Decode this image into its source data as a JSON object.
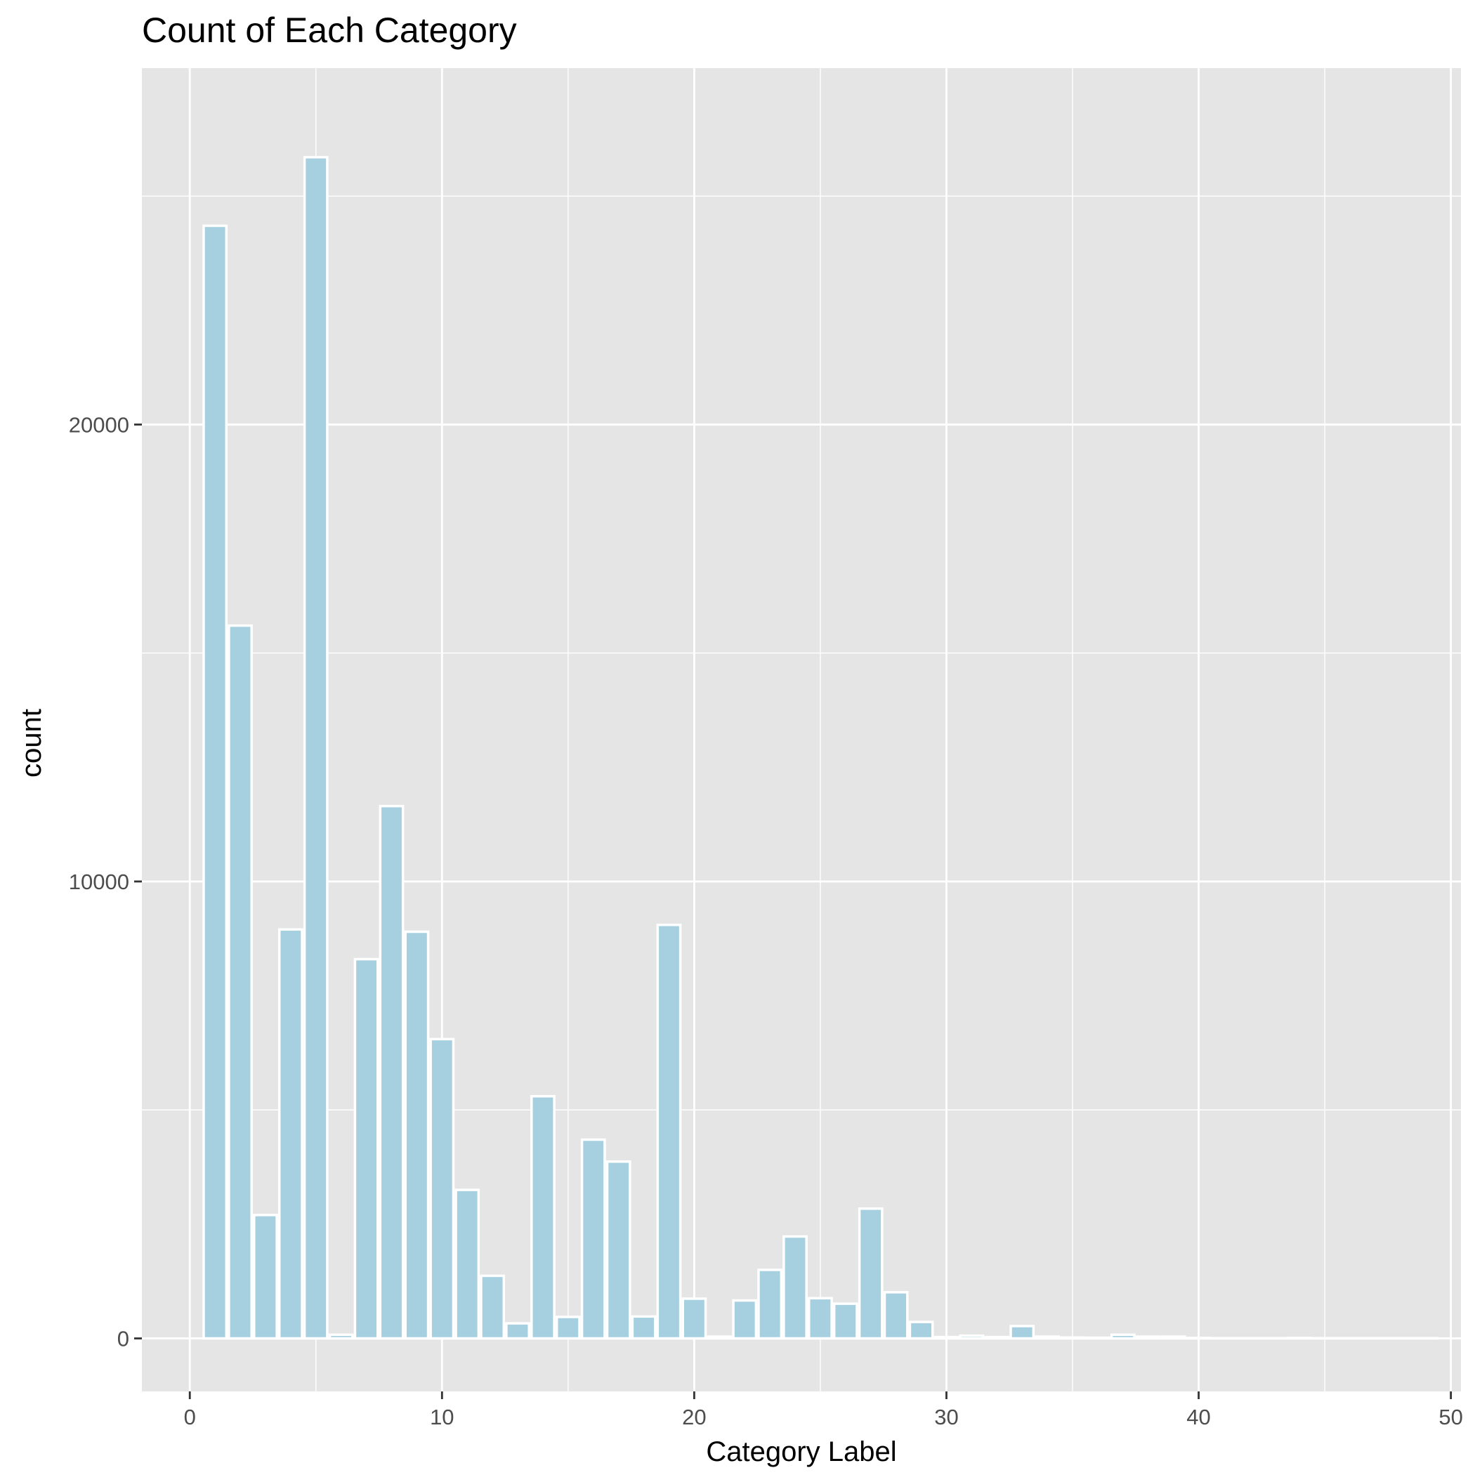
{
  "chart_data": {
    "type": "bar",
    "title": "Count of Each Category",
    "xlabel": "Category Label",
    "ylabel": "count",
    "xlim": [
      -1.9,
      50.4
    ],
    "ylim": [
      -1160,
      27800
    ],
    "x_ticks": [
      0,
      10,
      20,
      30,
      40,
      50
    ],
    "y_ticks": [
      0,
      10000,
      20000
    ],
    "grid": true,
    "legend": "none",
    "colors": {
      "bar_fill": "#a6d0e0",
      "bar_outline": "#ffffff",
      "panel_background": "#e5e5e5",
      "grid": "#ffffff",
      "tick_text": "#4d4d4d",
      "title_text": "#000000"
    },
    "x": [
      1,
      2,
      3,
      4,
      5,
      6,
      7,
      8,
      9,
      10,
      11,
      12,
      13,
      14,
      15,
      16,
      17,
      18,
      19,
      20,
      21,
      22,
      23,
      24,
      25,
      26,
      27,
      28,
      29,
      30,
      31,
      32,
      33,
      34,
      35,
      36,
      37,
      38,
      39,
      40,
      41,
      42,
      43,
      44,
      45,
      46,
      47,
      48,
      49
    ],
    "values": [
      24350,
      15600,
      2700,
      8950,
      25850,
      80,
      8300,
      11650,
      8900,
      6550,
      3250,
      1370,
      330,
      5300,
      470,
      4350,
      3870,
      480,
      9050,
      870,
      40,
      830,
      1500,
      2230,
      880,
      760,
      2840,
      1010,
      360,
      30,
      60,
      30,
      270,
      40,
      20,
      15,
      80,
      40,
      40,
      10,
      5,
      5,
      5,
      10,
      5,
      5,
      5,
      5,
      5
    ]
  }
}
